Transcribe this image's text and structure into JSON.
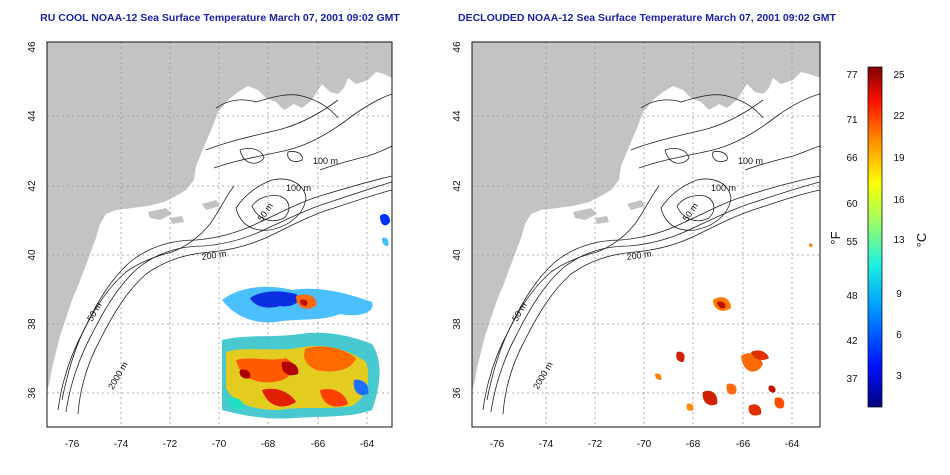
{
  "panels": [
    {
      "title": "RU COOL NOAA-12 Sea Surface Temperature March 07, 2001 09:02 GMT",
      "data_style": "cloudy"
    },
    {
      "title": "DECLOUDED NOAA-12 Sea Surface Temperature March 07, 2001 09:02 GMT",
      "data_style": "declouded"
    }
  ],
  "x_ticks": [
    "-76",
    "-74",
    "-72",
    "-70",
    "-68",
    "-66",
    "-64"
  ],
  "y_ticks": [
    "36",
    "38",
    "40",
    "42",
    "44",
    "46"
  ],
  "contour_labels": [
    "100 m",
    "100 m",
    "50 m",
    "200 m",
    "50 m",
    "2000 m"
  ],
  "colorbar": {
    "f_ticks": [
      "77",
      "71",
      "66",
      "60",
      "55",
      "48",
      "42",
      "37"
    ],
    "c_ticks": [
      "25",
      "22",
      "19",
      "16",
      "13",
      "9",
      "6",
      "3"
    ],
    "f_label": "°F",
    "c_label": "°C"
  },
  "colors": {
    "land": "#c3c3c3",
    "title": "#1a22a8",
    "grid": "#9a9a9a"
  }
}
